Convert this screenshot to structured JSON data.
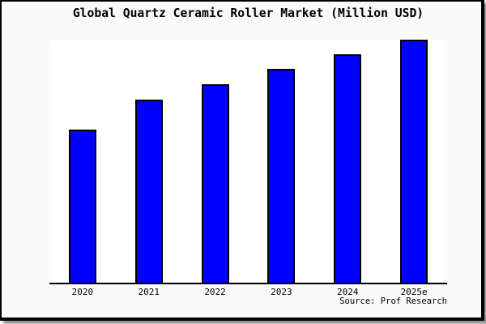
{
  "title": "Global Quartz Ceramic Roller Market (Million USD)",
  "source_note": "Source: Prof Research",
  "colors": {
    "bar_fill": "#0000ff",
    "bar_border": "#000000",
    "plot_background": "#ffffff",
    "figure_background": "#fafafa",
    "frame_border": "#000000",
    "text": "#000000"
  },
  "chart_data": {
    "type": "bar",
    "title": "Global Quartz Ceramic Roller Market (Million USD)",
    "categories": [
      "2020",
      "2021",
      "2022",
      "2023",
      "2024",
      "2025e"
    ],
    "values": [
      63,
      75.4,
      81.6,
      88,
      94.1,
      100
    ],
    "values_note": "Y axis has no tick labels or gridlines; values are estimated bar heights as percent of the tallest (2025e) bar",
    "xlabel": "",
    "ylabel": "",
    "legend": null,
    "grid": false,
    "y_axis_visible": false,
    "annotation": "Source: Prof Research"
  }
}
